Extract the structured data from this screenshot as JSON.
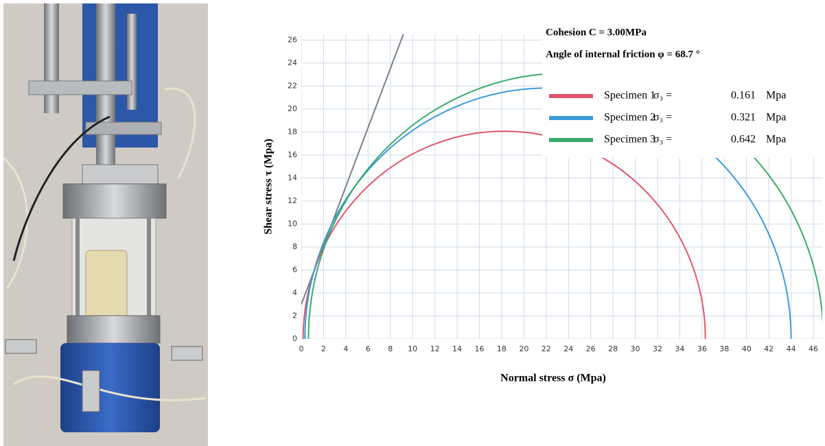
{
  "chart_data": {
    "type": "mohr",
    "cohesion": 3,
    "cohesion_label": "Cohesion  C =  3.00MPa",
    "friction_angle": 68.7,
    "friction_label": "Angle of internal friction φ = 68.7 °",
    "envelope_color": "#7a7f8a",
    "x_label": "Normal stress σ (Mpa)",
    "y_label": "Shear stress τ (Mpa)",
    "legend_symbol": "σ₃ =",
    "legend_unit": "Mpa",
    "series": [
      {
        "name": "Specimen 1",
        "color": "#e2546a",
        "sigma3": 0.161,
        "sigma1": 36.3
      },
      {
        "name": "Specimen 2",
        "color": "#3a9ad9",
        "sigma3": 0.321,
        "sigma1": 44.0
      },
      {
        "name": "Specimen 3",
        "color": "#3aaa6a",
        "sigma3": 0.642,
        "sigma1": 46.9
      }
    ],
    "xlim": [
      0,
      46.8
    ],
    "xticks": [
      0,
      2,
      4,
      6,
      8,
      10,
      12,
      14,
      16,
      18,
      20,
      22,
      24,
      26,
      28,
      30,
      32,
      34,
      36,
      38,
      40,
      42,
      44,
      46
    ],
    "ylim": [
      0,
      26.5
    ],
    "yticks": [
      0,
      2,
      4,
      6,
      8,
      10,
      12,
      14,
      16,
      18,
      20,
      22,
      24,
      26
    ],
    "grid": true
  }
}
